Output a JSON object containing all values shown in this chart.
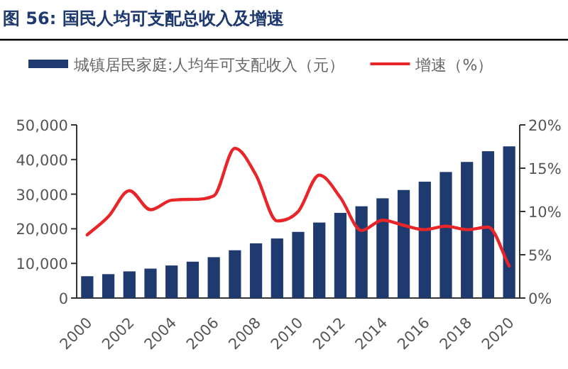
{
  "chart_data": {
    "type": "bar",
    "title": "图 56:  国民人均可支配总收入及增速",
    "categories": [
      "2000",
      null,
      "2002",
      null,
      "2004",
      null,
      "2006",
      null,
      "2008",
      null,
      "2010",
      null,
      "2012",
      null,
      "2014",
      null,
      "2016",
      null,
      "2018",
      null,
      "2020"
    ],
    "series": [
      {
        "name": "城镇居民家庭:人均年可支配收入（元）",
        "color": "#1f3a6e",
        "values": [
          6300,
          6900,
          7700,
          8500,
          9400,
          10500,
          11800,
          13800,
          15800,
          17200,
          19100,
          21800,
          24600,
          26500,
          28800,
          31200,
          33600,
          36400,
          39300,
          42400,
          43800
        ]
      },
      {
        "name": "增速（%）",
        "type": "line",
        "axis": "y2",
        "color": "#e8262a",
        "values": [
          7.3,
          9.4,
          12.4,
          10.2,
          11.3,
          11.4,
          11.8,
          17.3,
          14.2,
          8.9,
          10.0,
          14.2,
          11.6,
          7.8,
          9.0,
          8.4,
          7.9,
          8.3,
          7.9,
          8.2,
          3.7
        ]
      }
    ],
    "ylim": [
      0,
      50000
    ],
    "yticks": [
      {
        "value": 0,
        "label": "0"
      },
      {
        "value": 10000,
        "label": "10,000"
      },
      {
        "value": 20000,
        "label": "20,000"
      },
      {
        "value": 30000,
        "label": "30,000"
      },
      {
        "value": 40000,
        "label": "40,000"
      },
      {
        "value": 50000,
        "label": "50,000"
      }
    ],
    "y2lim": [
      0,
      20
    ],
    "y2ticks": [
      {
        "value": 0,
        "label": "0%"
      },
      {
        "value": 5,
        "label": "5%"
      },
      {
        "value": 10,
        "label": "10%"
      },
      {
        "value": 15,
        "label": "15%"
      },
      {
        "value": 20,
        "label": "20%"
      }
    ],
    "legend": "top"
  }
}
